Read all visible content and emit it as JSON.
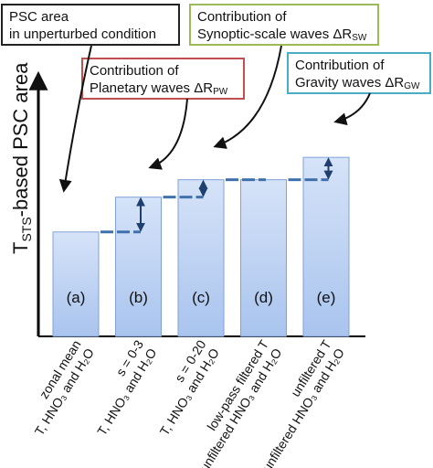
{
  "chart_data": {
    "type": "bar",
    "ylabel_prefix": "T",
    "ylabel_sub": "STS",
    "ylabel_rest": "-based PSC area",
    "ylim": [
      0,
      10
    ],
    "yticks": false,
    "bars": [
      {
        "label": "(a)",
        "value": 4.2,
        "baseline": 4.2,
        "category": [
          "zonal mean",
          "T, HNO₃ and H₂O"
        ]
      },
      {
        "label": "(b)",
        "value": 5.6,
        "baseline": 4.2,
        "category": [
          "s = 0-3",
          "T, HNO₃ and H₂O"
        ]
      },
      {
        "label": "(c)",
        "value": 6.3,
        "baseline": 5.6,
        "category": [
          "s = 0-20",
          "T, HNO₃ and H₂O"
        ]
      },
      {
        "label": "(d)",
        "value": 6.3,
        "baseline": 6.3,
        "category": [
          "low-pass filtered T",
          "unfiltered HNO₃ and H₂O"
        ]
      },
      {
        "label": "(e)",
        "value": 7.2,
        "baseline": 6.3,
        "category": [
          "unfiltered T",
          "unfiltered HNO₃ and H₂O"
        ]
      }
    ],
    "annotations": [
      {
        "border": "#222222",
        "lines": [
          "PSC area",
          "in unperturbed condition"
        ]
      },
      {
        "border": "#c0504d",
        "lines": [
          "Contribution of",
          "Planetary waves ΔR"
        ],
        "sub": "PW"
      },
      {
        "border": "#9bbb59",
        "lines": [
          "Contribution of",
          "Synoptic-scale waves ΔR"
        ],
        "sub": "SW"
      },
      {
        "border": "#4bacc6",
        "lines": [
          "Contribution of",
          "Gravity waves ΔR"
        ],
        "sub": "GW"
      }
    ],
    "colors": {
      "bar_top": "#d6e3f8",
      "bar_bottom": "#a9c4ee",
      "bar_edge": "#7fa2d8",
      "dash": "#3f72ad",
      "arrow": "#1f3f6e"
    }
  }
}
